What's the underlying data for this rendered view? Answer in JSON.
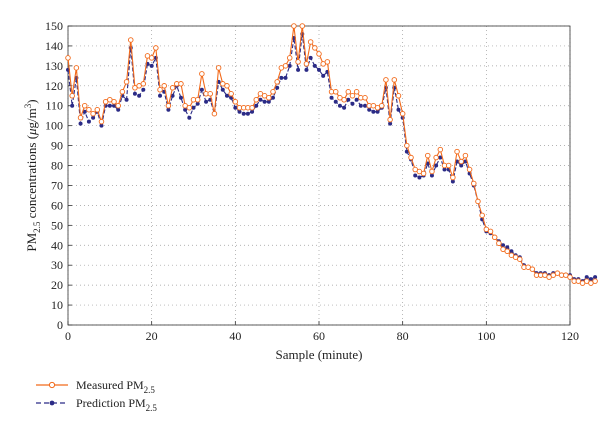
{
  "chart_data": {
    "type": "line",
    "xlabel": "Sample (minute)",
    "ylabel_main": "PM",
    "ylabel_sub": "2.5",
    "ylabel_rest": " concentrations (",
    "ylabel_mu": "μ",
    "ylabel_unit": "g/m",
    "ylabel_sup": "3",
    "ylabel_close": ")",
    "xlim": [
      0,
      120
    ],
    "ylim": [
      0,
      150
    ],
    "xticks": [
      "0",
      "20",
      "40",
      "60",
      "80",
      "100",
      "120"
    ],
    "yticks": [
      "0",
      "10",
      "20",
      "30",
      "40",
      "50",
      "60",
      "70",
      "80",
      "90",
      "100",
      "110",
      "120",
      "130",
      "140",
      "150"
    ],
    "grid": true,
    "legend_position": "bottom-left",
    "series": [
      {
        "name": "Measured PM",
        "name_sub": "2.5",
        "color": "#f26a1b",
        "marker": "open-circle",
        "line": "solid",
        "values": [
          134,
          115,
          129,
          104,
          110,
          108,
          106,
          108,
          102,
          112,
          113,
          112,
          110,
          117,
          122,
          143,
          119,
          120,
          121,
          135,
          134,
          139,
          118,
          120,
          110,
          119,
          121,
          121,
          110,
          109,
          113,
          113,
          126,
          116,
          116,
          106,
          129,
          121,
          120,
          116,
          112,
          109,
          109,
          109,
          109,
          113,
          116,
          115,
          114,
          117,
          122,
          129,
          130,
          134,
          150,
          132,
          150,
          131,
          142,
          139,
          136,
          131,
          132,
          117,
          117,
          114,
          113,
          117,
          115,
          117,
          114,
          114,
          110,
          110,
          109,
          110,
          123,
          103,
          123,
          115,
          106,
          90,
          84,
          78,
          77,
          76,
          85,
          77,
          84,
          88,
          80,
          80,
          74,
          87,
          82,
          85,
          78,
          71,
          62,
          55,
          48,
          47,
          44,
          41,
          38,
          37,
          35,
          34,
          33,
          29,
          29,
          28,
          25,
          25,
          25,
          24,
          25,
          26,
          25,
          25,
          24,
          22,
          22,
          21,
          22,
          21,
          22
        ]
      },
      {
        "name": "Prediction PM",
        "name_sub": "2.5",
        "color": "#2b2b86",
        "marker": "filled-dot",
        "line": "dashed",
        "values": [
          128,
          110,
          124,
          101,
          107,
          102,
          104,
          107,
          100,
          110,
          110,
          110,
          108,
          115,
          113,
          139,
          116,
          115,
          118,
          131,
          130,
          134,
          115,
          117,
          108,
          115,
          120,
          114,
          108,
          104,
          109,
          111,
          118,
          112,
          113,
          106,
          122,
          118,
          115,
          114,
          109,
          107,
          106,
          106,
          107,
          110,
          113,
          112,
          112,
          114,
          119,
          124,
          124,
          130,
          144,
          128,
          146,
          128,
          134,
          130,
          128,
          125,
          127,
          114,
          112,
          110,
          109,
          113,
          111,
          113,
          110,
          110,
          108,
          107,
          107,
          109,
          119,
          101,
          119,
          108,
          104,
          87,
          83,
          75,
          74,
          75,
          81,
          75,
          80,
          84,
          78,
          78,
          72,
          82,
          80,
          82,
          76,
          70,
          62,
          53,
          47,
          46,
          44,
          42,
          40,
          39,
          37,
          35,
          34,
          30,
          29,
          28,
          26,
          26,
          26,
          25,
          26,
          26,
          25,
          25,
          25,
          23,
          23,
          22,
          24,
          23,
          24
        ]
      }
    ]
  }
}
